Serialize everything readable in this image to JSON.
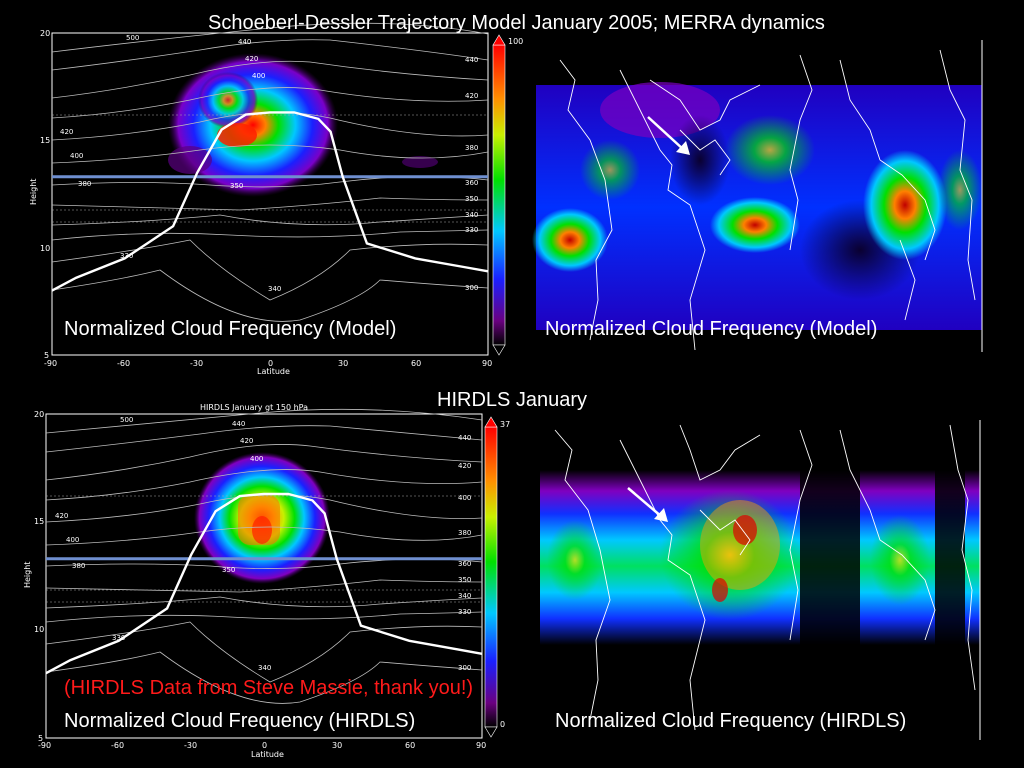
{
  "slide": {
    "title": "Schoeberl-Dessler Trajectory Model January 2005; MERRA dynamics",
    "section_title": "HIRDLS January",
    "credit": "(HIRDLS Data from Steve Massie, thank you!)",
    "caption_model": "Normalized Cloud Frequency (Model)",
    "caption_hirdls": "Normalized Cloud Frequency (HIRDLS)"
  },
  "colors": {
    "background": "#000000",
    "credit_text": "#ff1a1a",
    "tropopause_bar": "#6f8fd0"
  },
  "chart_data": [
    {
      "type": "heatmap",
      "panel": "model-cross-section",
      "title": "",
      "xlabel": "Latitude",
      "ylabel": "Height",
      "xlim": [
        -90,
        90
      ],
      "ylim": [
        5,
        20
      ],
      "x_ticks": [
        "-90",
        "-60",
        "-30",
        "0",
        "30",
        "60",
        "90"
      ],
      "y_ticks": [
        "5",
        "10",
        "15",
        "20"
      ],
      "colorbar_range": [
        0,
        100
      ],
      "colorbar_top_label": "100",
      "theta_contours_k": [
        "300",
        "330",
        "340",
        "350",
        "360",
        "380",
        "400",
        "420",
        "440",
        "500"
      ],
      "reference_height": 13.3,
      "tropopause": {
        "x": [
          -90,
          -80,
          -60,
          -40,
          -30,
          -20,
          -10,
          0,
          10,
          20,
          25,
          30,
          40,
          60,
          80,
          90
        ],
        "y": [
          8.0,
          8.6,
          9.5,
          11.0,
          13.5,
          15.5,
          16.2,
          16.3,
          16.3,
          16.0,
          15.4,
          13.3,
          10.2,
          9.5,
          9.1,
          8.9
        ]
      },
      "cloud_peak": {
        "lat": -13,
        "height": 15.4
      }
    },
    {
      "type": "heatmap",
      "panel": "model-map",
      "title": "",
      "description_label": "Normalized Cloud Frequency (Model)"
    },
    {
      "type": "heatmap",
      "panel": "hirdls-cross-section",
      "title": "HIRDLS January gt 150 hPa",
      "xlabel": "Latitude",
      "ylabel": "Height",
      "xlim": [
        -90,
        90
      ],
      "ylim": [
        5,
        20
      ],
      "x_ticks": [
        "-90",
        "-60",
        "-30",
        "0",
        "30",
        "60",
        "90"
      ],
      "y_ticks": [
        "5",
        "10",
        "15",
        "20"
      ],
      "colorbar_range": [
        0,
        37
      ],
      "colorbar_top_label": "37",
      "colorbar_bottom_label": "0",
      "theta_contours_k": [
        "300",
        "330",
        "340",
        "350",
        "360",
        "380",
        "400",
        "420",
        "440",
        "500"
      ],
      "reference_height": 13.3,
      "tropopause": {
        "x": [
          -90,
          -80,
          -60,
          -40,
          -30,
          -20,
          -10,
          0,
          10,
          20,
          25,
          30,
          40,
          60,
          80,
          90
        ],
        "y": [
          8.0,
          8.6,
          9.5,
          11.0,
          13.5,
          15.5,
          16.2,
          16.3,
          16.3,
          16.0,
          15.4,
          13.3,
          10.2,
          9.5,
          9.1,
          8.9
        ]
      },
      "cloud_peak": {
        "lat": 0,
        "height": 15.3
      }
    },
    {
      "type": "heatmap",
      "panel": "hirdls-map",
      "title": "",
      "description_label": "Normalized Cloud Frequency (HIRDLS)"
    }
  ]
}
